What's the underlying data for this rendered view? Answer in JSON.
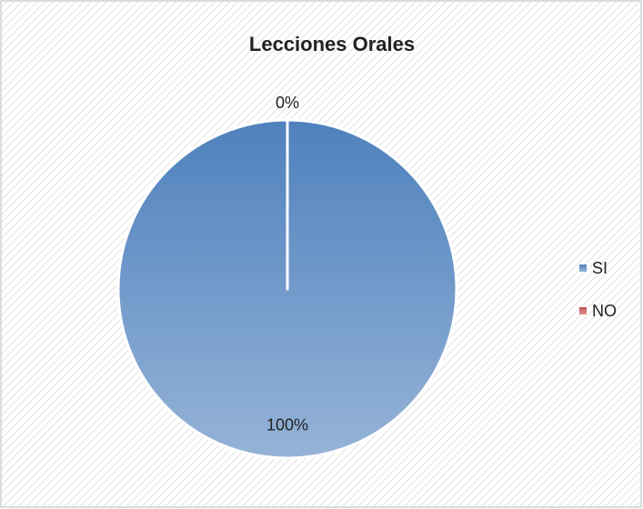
{
  "chart_data": {
    "type": "pie",
    "title": "Lecciones Orales",
    "categories": [
      "SI",
      "NO"
    ],
    "values": [
      100,
      0
    ],
    "value_labels": [
      "100%",
      "0%"
    ],
    "colors": [
      "#4f81bd",
      "#c0504d"
    ],
    "legend": "right"
  }
}
